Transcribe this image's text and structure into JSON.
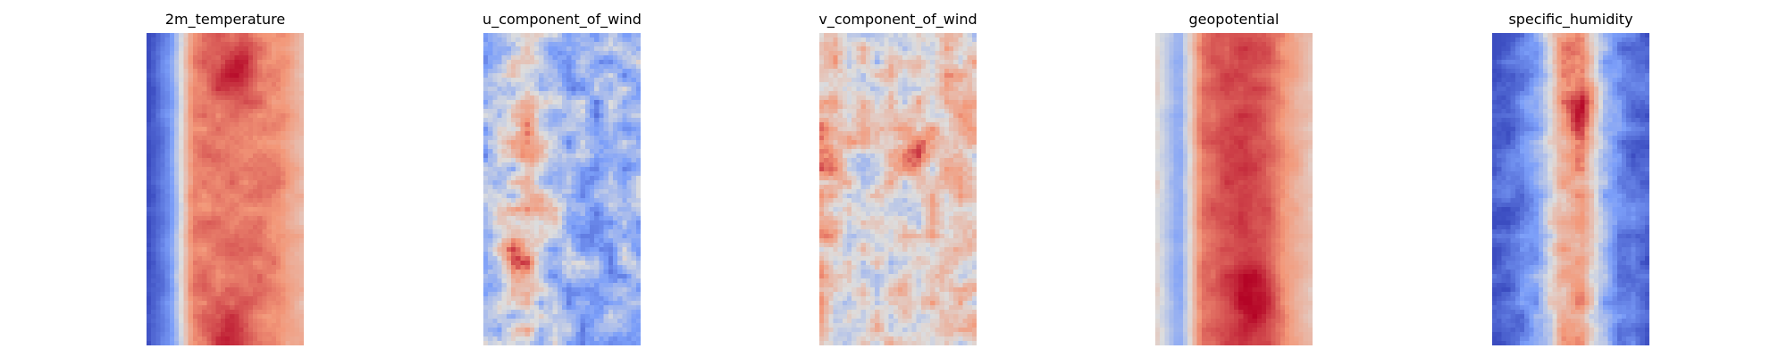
{
  "chart_data": [
    {
      "type": "heatmap",
      "title": "2m_temperature",
      "colormap": "coolwarm",
      "axes": "off",
      "field": {
        "cols": 34,
        "rows": 70,
        "profile": [
          -1.0,
          -0.55,
          0.55,
          0.62,
          0.6,
          0.58,
          0.55,
          0.3
        ],
        "noise": 0.1,
        "seed": 11,
        "hotspots": [
          [
            0.57,
            0.12,
            0.35
          ],
          [
            0.55,
            0.98,
            0.35
          ]
        ]
      }
    },
    {
      "type": "heatmap",
      "title": "u_component_of_wind",
      "colormap": "coolwarm",
      "axes": "off",
      "field": {
        "cols": 34,
        "rows": 70,
        "profile": [
          -0.3,
          -0.15,
          0.1,
          -0.25,
          -0.35,
          -0.4,
          -0.35,
          -0.3
        ],
        "noise": 0.35,
        "seed": 23,
        "hotspots": [
          [
            0.18,
            0.7,
            0.6
          ],
          [
            0.28,
            0.3,
            0.4
          ],
          [
            0.45,
            0.55,
            0.3
          ]
        ]
      }
    },
    {
      "type": "heatmap",
      "title": "v_component_of_wind",
      "colormap": "coolwarm",
      "axes": "off",
      "field": {
        "cols": 34,
        "rows": 70,
        "profile": [
          0.25,
          0.1,
          0.05,
          0.05,
          0.05,
          0.1,
          0.15,
          0.05
        ],
        "noise": 0.35,
        "seed": 37,
        "hotspots": [
          [
            0.95,
            0.25,
            0.55
          ],
          [
            0.05,
            0.4,
            0.4
          ],
          [
            0.6,
            0.38,
            0.4
          ]
        ]
      }
    },
    {
      "type": "heatmap",
      "title": "geopotential",
      "colormap": "coolwarm",
      "axes": "off",
      "field": {
        "cols": 34,
        "rows": 70,
        "profile": [
          0.05,
          -0.45,
          0.6,
          0.75,
          0.8,
          0.72,
          0.45,
          0.2
        ],
        "noise": 0.08,
        "seed": 41,
        "hotspots": [
          [
            0.65,
            0.85,
            0.25
          ]
        ]
      }
    },
    {
      "type": "heatmap",
      "title": "specific_humidity",
      "colormap": "coolwarm",
      "axes": "off",
      "field": {
        "cols": 34,
        "rows": 70,
        "profile": [
          -0.92,
          -0.75,
          -0.4,
          0.3,
          0.45,
          -0.35,
          -0.7,
          -0.85
        ],
        "noise": 0.2,
        "seed": 53,
        "hotspots": [
          [
            0.6,
            0.25,
            0.5
          ],
          [
            0.52,
            0.05,
            0.3
          ]
        ]
      }
    }
  ]
}
